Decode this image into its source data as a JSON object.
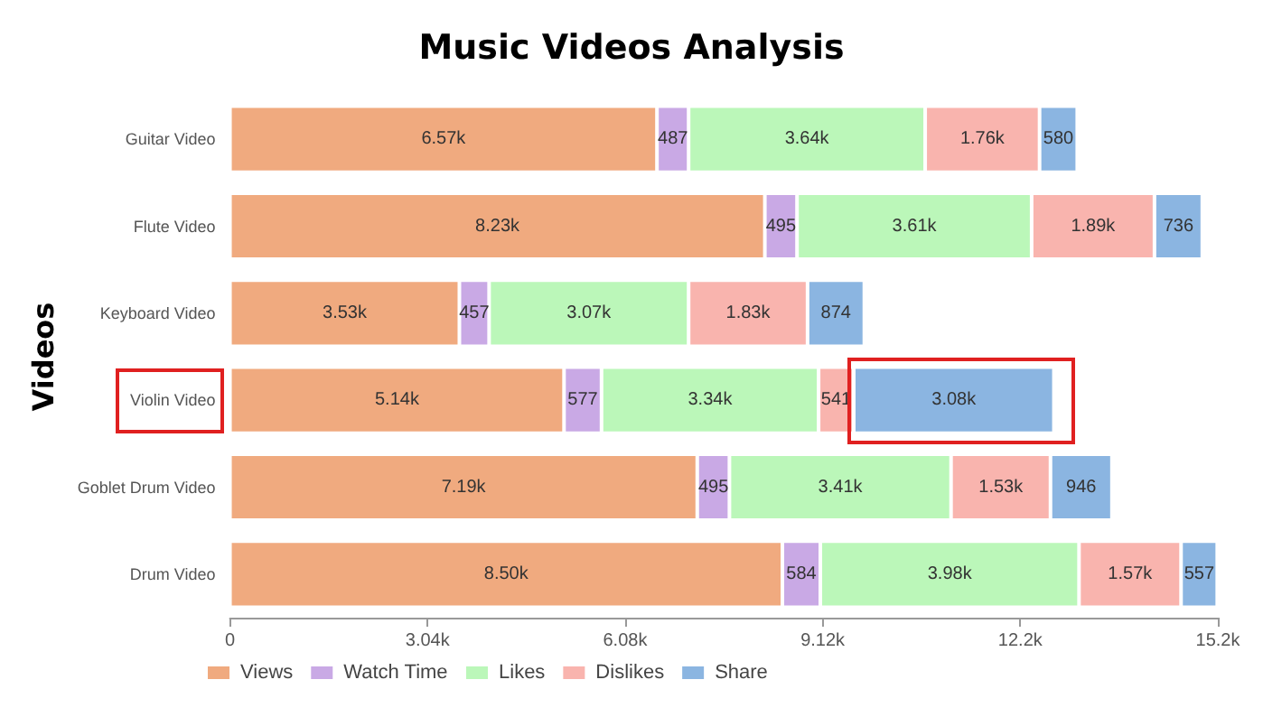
{
  "chart_data": {
    "type": "bar",
    "title": "Music Videos Analysis",
    "ylabel": "Videos",
    "orientation": "horizontal",
    "stacked": true,
    "categories": [
      "Guitar Video",
      "Flute Video",
      "Keyboard Video",
      "Violin Video",
      "Goblet Drum Video",
      "Drum Video"
    ],
    "series": [
      {
        "name": "Views",
        "color": "#f0aa7f",
        "values": [
          6570,
          8230,
          3530,
          5140,
          7190,
          8500
        ],
        "value_labels": [
          "6.57k",
          "8.23k",
          "3.53k",
          "5.14k",
          "7.19k",
          "8.50k"
        ]
      },
      {
        "name": "Watch Time",
        "color": "#c9a9e5",
        "values": [
          487,
          495,
          457,
          577,
          495,
          584
        ],
        "value_labels": [
          "487",
          "495",
          "457",
          "577",
          "495",
          "584"
        ]
      },
      {
        "name": "Likes",
        "color": "#bbf7b9",
        "values": [
          3640,
          3610,
          3070,
          3340,
          3410,
          3980
        ],
        "value_labels": [
          "3.64k",
          "3.61k",
          "3.07k",
          "3.34k",
          "3.41k",
          "3.98k"
        ]
      },
      {
        "name": "Dislikes",
        "color": "#f9b4ae",
        "values": [
          1760,
          1890,
          1830,
          541,
          1530,
          1570
        ],
        "value_labels": [
          "1.76k",
          "1.89k",
          "1.83k",
          "541",
          "1.53k",
          "1.57k"
        ]
      },
      {
        "name": "Share",
        "color": "#8bb5e1",
        "values": [
          580,
          736,
          874,
          3080,
          946,
          557
        ],
        "value_labels": [
          "580",
          "736",
          "874",
          "3.08k",
          "946",
          "557"
        ]
      }
    ],
    "xlim": [
      0,
      15200
    ],
    "xticks": [
      0,
      {
        "value": 3040,
        "label": "3.04k"
      },
      {
        "value": 6080,
        "label": "6.08k"
      },
      {
        "value": 9120,
        "label": "9.12k"
      },
      {
        "value": 12160,
        "label": "12.2k"
      },
      {
        "value": 15200,
        "label": "15.2k"
      }
    ],
    "grid": false,
    "legend": "bottom left"
  }
}
